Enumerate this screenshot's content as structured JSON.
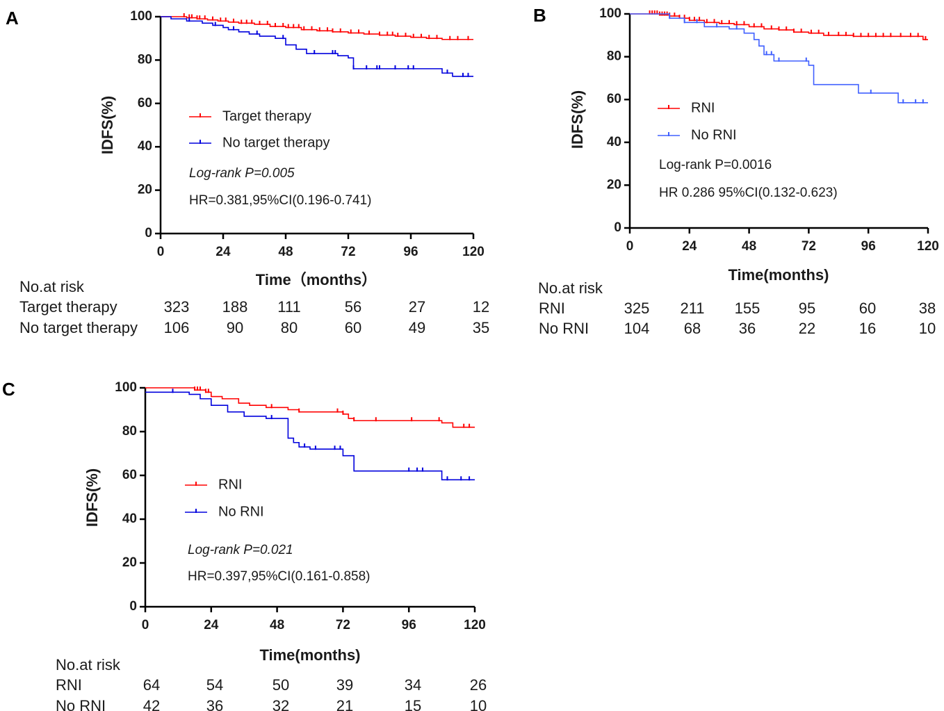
{
  "panels": [
    {
      "letter": "A",
      "chart_data": {
        "type": "line",
        "title": "",
        "xlabel": "Time（months）",
        "ylabel": "IDFS(%)",
        "xlim": [
          0,
          120
        ],
        "ylim": [
          0,
          100
        ],
        "xticks": [
          0,
          24,
          48,
          72,
          96,
          120
        ],
        "yticks": [
          0,
          20,
          40,
          60,
          80,
          100
        ],
        "grid": false,
        "legend_position": "middle-left",
        "series": [
          {
            "name": "Target therapy",
            "color": "#ff0000",
            "x": [
              0,
              8,
              10,
              14,
              18,
              22,
              26,
              30,
              36,
              42,
              48,
              54,
              60,
              66,
              72,
              78,
              84,
              90,
              96,
              102,
              108,
              114,
              120
            ],
            "y": [
              100,
              100,
              99.5,
              99,
              98.5,
              98,
              97.5,
              97,
              96.5,
              95.5,
              95,
              94,
              93.5,
              93,
              92.5,
              92,
              91.5,
              91,
              90.5,
              90,
              89.5,
              89.5,
              89.5
            ],
            "censor_x": [
              9,
              11,
              12,
              14,
              15,
              17,
              20,
              23,
              25,
              28,
              31,
              33,
              35,
              38,
              41,
              44,
              47,
              49,
              51,
              53,
              55,
              58,
              61,
              64,
              66,
              69,
              73,
              76,
              80,
              84,
              87,
              89,
              91,
              94,
              97,
              100,
              103,
              106,
              111,
              114,
              118
            ]
          },
          {
            "name": "No target therapy",
            "color": "#0000dd",
            "x": [
              0,
              4,
              10,
              16,
              20,
              24,
              26,
              30,
              34,
              38,
              44,
              48,
              52,
              56,
              62,
              68,
              72,
              74,
              80,
              88,
              96,
              100,
              104,
              108,
              112,
              120
            ],
            "y": [
              100,
              99,
              98,
              97,
              96,
              95,
              94,
              93,
              92,
              91,
              90,
              87,
              85,
              83,
              83,
              82,
              81,
              76,
              76,
              76,
              76,
              76,
              76,
              74,
              72.5,
              72.5
            ],
            "censor_x": [
              11,
              21,
              28,
              37,
              47,
              59,
              66,
              67,
              74,
              79,
              83,
              84,
              90,
              95,
              97,
              110,
              116,
              118
            ]
          }
        ],
        "legend": [
          "Target therapy",
          "No target therapy"
        ],
        "annotations": [
          "Log-rank P=0.005",
          "HR=0.381,95%CI(0.196-0.741)"
        ]
      },
      "risk": {
        "heading": "No.at risk",
        "rows": [
          {
            "label": "Target therapy",
            "values": [
              "323",
              "188",
              "111",
              "56",
              "27",
              "12"
            ]
          },
          {
            "label": "No target therapy",
            "values": [
              "106",
              "90",
              "80",
              "60",
              "49",
              "35"
            ]
          }
        ]
      }
    },
    {
      "letter": "B",
      "chart_data": {
        "type": "line",
        "title": "",
        "xlabel": "Time(months)",
        "ylabel": "IDFS(%)",
        "xlim": [
          0,
          120
        ],
        "ylim": [
          0,
          100
        ],
        "xticks": [
          0,
          24,
          48,
          72,
          96,
          120
        ],
        "yticks": [
          0,
          20,
          40,
          60,
          80,
          100
        ],
        "grid": false,
        "legend_position": "middle-left",
        "series": [
          {
            "name": "RNI",
            "color": "#ff0000",
            "x": [
              0,
              8,
              12,
              16,
              20,
              24,
              30,
              36,
              42,
              48,
              54,
              60,
              66,
              72,
              78,
              84,
              90,
              96,
              102,
              108,
              114,
              118,
              120
            ],
            "y": [
              100,
              100,
              99.5,
              99,
              98,
              97,
              96,
              95.5,
              95,
              94,
              93,
              92.5,
              91.5,
              91,
              90,
              90,
              89.5,
              89.5,
              89.5,
              89.5,
              89.5,
              88,
              88
            ],
            "censor_x": [
              8,
              9,
              10,
              11,
              12,
              13,
              14,
              15,
              16,
              18,
              20,
              22,
              24,
              26,
              28,
              31,
              34,
              37,
              40,
              43,
              46,
              50,
              53,
              57,
              60,
              63,
              66,
              69,
              73,
              76,
              80,
              84,
              87,
              90,
              93,
              96,
              99,
              102,
              105,
              109,
              113,
              116,
              119
            ]
          },
          {
            "name": "No RNI",
            "color": "#4060ff",
            "x": [
              0,
              10,
              16,
              22,
              30,
              40,
              46,
              50,
              52,
              54,
              58,
              66,
              72,
              74,
              80,
              88,
              92,
              96,
              100,
              108,
              112,
              120
            ],
            "y": [
              100,
              100,
              98,
              96,
              94,
              93,
              91,
              88,
              85,
              81,
              78,
              78,
              76,
              67,
              67,
              67,
              63,
              63,
              63,
              58.5,
              58.5,
              58.5
            ],
            "censor_x": [
              16,
              22,
              27,
              35,
              43,
              55,
              57,
              60,
              71,
              97,
              110,
              115,
              118
            ]
          }
        ],
        "legend": [
          "RNI",
          "No RNI"
        ],
        "annotations": [
          "Log-rank P=0.0016",
          "HR 0.286 95%CI(0.132-0.623)"
        ]
      },
      "risk": {
        "heading": "No.at risk",
        "rows": [
          {
            "label": "RNI",
            "values": [
              "325",
              "211",
              "155",
              "95",
              "60",
              "38"
            ]
          },
          {
            "label": "No RNI",
            "values": [
              "104",
              "68",
              "36",
              "22",
              "16",
              "10"
            ]
          }
        ]
      }
    },
    {
      "letter": "C",
      "chart_data": {
        "type": "line",
        "title": "",
        "xlabel": "Time(months)",
        "ylabel": "IDFS(%)",
        "xlim": [
          0,
          120
        ],
        "ylim": [
          0,
          100
        ],
        "xticks": [
          0,
          24,
          48,
          72,
          96,
          120
        ],
        "yticks": [
          0,
          20,
          40,
          60,
          80,
          100
        ],
        "grid": false,
        "legend_position": "middle-left",
        "series": [
          {
            "name": "RNI",
            "color": "#ff0000",
            "x": [
              0,
              14,
              18,
              22,
              24,
              28,
              34,
              38,
              44,
              52,
              56,
              64,
              72,
              74,
              76,
              84,
              92,
              100,
              108,
              112,
              120
            ],
            "y": [
              100,
              100,
              99,
              98,
              96,
              95,
              93,
              92,
              91,
              90,
              89,
              89,
              88,
              86,
              85,
              85,
              85,
              85,
              84,
              82,
              82
            ],
            "censor_x": [
              18,
              19,
              20,
              22,
              23,
              46,
              56,
              70,
              72,
              76,
              84,
              97,
              107,
              116,
              118
            ]
          },
          {
            "name": "No RNI",
            "color": "#0000dd",
            "x": [
              0,
              12,
              16,
              20,
              24,
              30,
              36,
              44,
              52,
              54,
              56,
              60,
              72,
              76,
              84,
              92,
              100,
              108,
              112,
              120
            ],
            "y": [
              98,
              98,
              97,
              95,
              92,
              89,
              87,
              86,
              77,
              75,
              73,
              72,
              69,
              62,
              62,
              62,
              62,
              58,
              58,
              58
            ],
            "censor_x": [
              10,
              46,
              58,
              62,
              69,
              71,
              96,
              99,
              101,
              110,
              115,
              118
            ]
          }
        ],
        "legend": [
          "RNI",
          "No RNI"
        ],
        "annotations": [
          "Log-rank P=0.021",
          "HR=0.397,95%CI(0.161-0.858)"
        ]
      },
      "risk": {
        "heading": "No.at risk",
        "rows": [
          {
            "label": "RNI",
            "values": [
              "64",
              "54",
              "50",
              "39",
              "34",
              "26"
            ]
          },
          {
            "label": "No RNI",
            "values": [
              "42",
              "36",
              "32",
              "21",
              "15",
              "10"
            ]
          }
        ]
      }
    }
  ]
}
